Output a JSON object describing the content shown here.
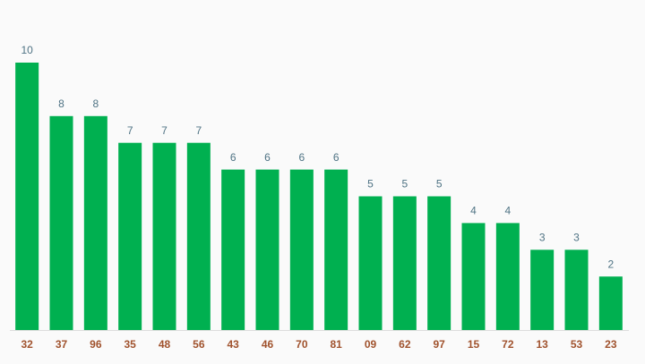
{
  "chart_data": {
    "type": "bar",
    "categories": [
      "32",
      "37",
      "96",
      "35",
      "48",
      "56",
      "43",
      "46",
      "70",
      "81",
      "09",
      "62",
      "97",
      "15",
      "72",
      "13",
      "53",
      "23"
    ],
    "values": [
      10,
      8,
      8,
      7,
      7,
      7,
      6,
      6,
      6,
      6,
      5,
      5,
      5,
      4,
      4,
      3,
      3,
      2
    ],
    "color": "#00b050"
  }
}
